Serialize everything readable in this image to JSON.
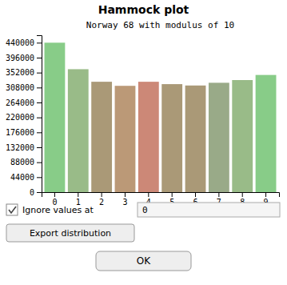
{
  "chart_data": {
    "type": "bar",
    "title": "Hammock plot",
    "subtitle": "Norway 68 with modulus of 10",
    "categories": [
      0,
      1,
      2,
      3,
      4,
      5,
      6,
      7,
      8,
      9
    ],
    "values": [
      440000,
      362000,
      325000,
      313000,
      325000,
      318000,
      314000,
      322000,
      330000,
      345000
    ],
    "colors": [
      "#88cc88",
      "#99bb88",
      "#aa9977",
      "#bb9977",
      "#cc8877",
      "#aa9977",
      "#aa9977",
      "#99aa88",
      "#99bb88",
      "#88cc88"
    ],
    "ylim": [
      0,
      462000
    ],
    "yticks": [
      0,
      44000,
      88000,
      132000,
      176000,
      220000,
      264000,
      308000,
      352000,
      396000,
      440000
    ],
    "grid": false,
    "annotations": [
      "Ignore values at",
      "0",
      "Export distribution",
      "OK"
    ]
  }
}
